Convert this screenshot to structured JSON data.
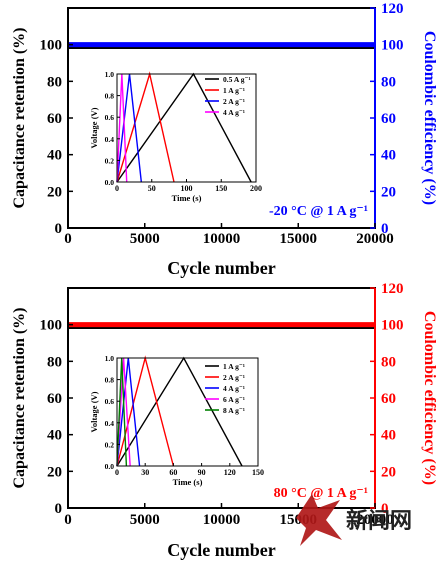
{
  "chart_data": [
    {
      "type": "line",
      "xlabel": "Cycle number",
      "ylabel": "Capacitance retention (%)",
      "y2label": "Coulombic efficiency (%)",
      "xlim": [
        0,
        20000
      ],
      "ylim": [
        0,
        120
      ],
      "y2lim": [
        0,
        120
      ],
      "xticks": [
        0,
        5000,
        10000,
        15000,
        20000
      ],
      "yticks": [
        0,
        20,
        40,
        60,
        80,
        100
      ],
      "y2ticks": [
        0,
        20,
        40,
        60,
        80,
        100,
        120
      ],
      "y2_color": "#0000ff",
      "condition_label": "-20 °C  @ 1 A g⁻¹",
      "condition_color": "#0000ff",
      "series": [
        {
          "axis": "left",
          "color": "#000000",
          "x": [
            0,
            20000
          ],
          "y": [
            99,
            99
          ]
        },
        {
          "axis": "right",
          "color": "#0000ff",
          "x": [
            0,
            20000
          ],
          "y": [
            100,
            100
          ]
        }
      ],
      "inset": {
        "type": "line",
        "xlabel": "Time (s)",
        "ylabel": "Voltage (V)",
        "xlim": [
          0,
          200
        ],
        "ylim": [
          0,
          1.0
        ],
        "xticks": [
          0,
          50,
          100,
          150,
          200
        ],
        "yticks": [
          0.0,
          0.2,
          0.4,
          0.6,
          0.8,
          1.0
        ],
        "legend_position": "top-right",
        "series": [
          {
            "name": "0.5 A g⁻¹",
            "color": "#000000",
            "x": [
              0,
              110,
              193
            ],
            "y": [
              0,
              1.0,
              0
            ]
          },
          {
            "name": "1 A g⁻¹",
            "color": "#ff0000",
            "x": [
              0,
              47,
              82
            ],
            "y": [
              0,
              1.0,
              0
            ]
          },
          {
            "name": "2 A g⁻¹",
            "color": "#0000ff",
            "x": [
              0,
              18,
              35
            ],
            "y": [
              0,
              1.0,
              0
            ]
          },
          {
            "name": "4 A g⁻¹",
            "color": "#ff00ff",
            "x": [
              0,
              7,
              14
            ],
            "y": [
              0,
              1.0,
              0
            ]
          }
        ]
      }
    },
    {
      "type": "line",
      "xlabel": "Cycle number",
      "ylabel": "Capacitance retention (%)",
      "y2label": "Coulombic efficiency (%)",
      "xlim": [
        0,
        20000
      ],
      "ylim": [
        0,
        120
      ],
      "y2lim": [
        0,
        120
      ],
      "xticks": [
        0,
        5000,
        10000,
        15000,
        20000
      ],
      "yticks": [
        0,
        20,
        40,
        60,
        80,
        100
      ],
      "y2ticks": [
        0,
        20,
        40,
        60,
        80,
        100,
        120
      ],
      "y2_color": "#ff0000",
      "condition_label": "80 °C @ 1 A g⁻¹",
      "condition_color": "#ff0000",
      "series": [
        {
          "axis": "left",
          "color": "#000000",
          "x": [
            0,
            20000
          ],
          "y": [
            99,
            99
          ]
        },
        {
          "axis": "right",
          "color": "#ff0000",
          "x": [
            0,
            20000
          ],
          "y": [
            100,
            100
          ]
        }
      ],
      "inset": {
        "type": "line",
        "xlabel": "Time (s)",
        "ylabel": "Voltage (V)",
        "xlim": [
          0,
          150
        ],
        "ylim": [
          0,
          1.0
        ],
        "xticks": [
          0,
          30,
          60,
          90,
          120,
          150
        ],
        "yticks": [
          0.0,
          0.2,
          0.4,
          0.6,
          0.8,
          1.0
        ],
        "legend_position": "top-right",
        "series": [
          {
            "name": "1 A g⁻¹",
            "color": "#000000",
            "x": [
              0,
              71,
              133
            ],
            "y": [
              0,
              1.0,
              0
            ]
          },
          {
            "name": "2 A g⁻¹",
            "color": "#ff0000",
            "x": [
              0,
              30,
              60
            ],
            "y": [
              0,
              1.0,
              0
            ]
          },
          {
            "name": "4 A g⁻¹",
            "color": "#0000ff",
            "x": [
              0,
              12,
              24
            ],
            "y": [
              0,
              1.0,
              0
            ]
          },
          {
            "name": "6 A g⁻¹",
            "color": "#ff00ff",
            "x": [
              0,
              7,
              14
            ],
            "y": [
              0,
              1.0,
              0
            ]
          },
          {
            "name": "8 A g⁻¹",
            "color": "#008000",
            "x": [
              0,
              5,
              10
            ],
            "y": [
              0,
              1.0,
              0
            ]
          }
        ]
      }
    }
  ],
  "watermark": {
    "text": "新闻网"
  }
}
